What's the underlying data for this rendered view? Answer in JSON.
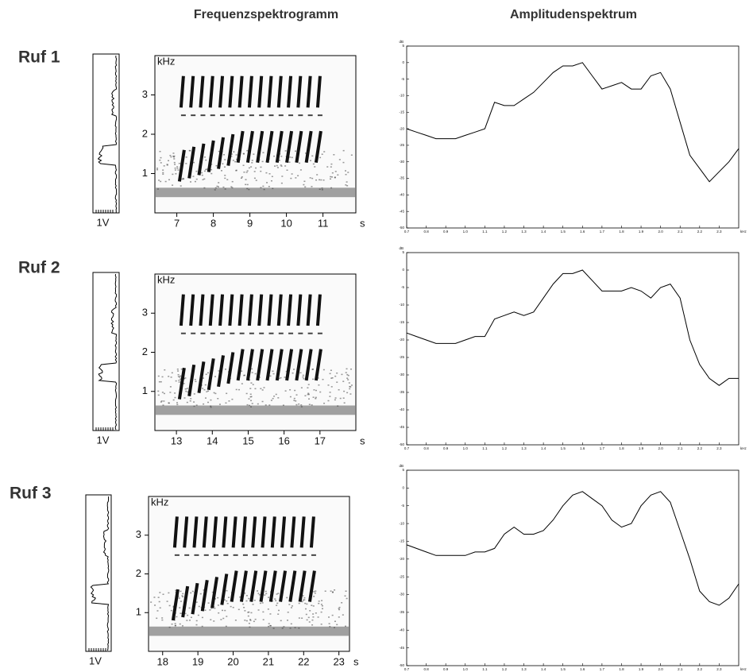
{
  "column_titles": [
    "Frequenzspektrogramm",
    "Amplitudenspektrum"
  ],
  "chart_data": [
    {
      "type": "spectrogram",
      "title": "Ruf 1",
      "ylabel": "kHz",
      "xlabel": "s",
      "side_label": "1V",
      "xlim": [
        6.4,
        11.9
      ],
      "xticks": [
        7,
        8,
        9,
        10,
        11
      ],
      "ylim": [
        0,
        4
      ],
      "yticks": [
        1,
        2,
        3
      ]
    },
    {
      "type": "line",
      "ylabel": "dB",
      "xlabel": "kHz",
      "color": "#000000",
      "xlim": [
        0.7,
        2.4
      ],
      "ylim": [
        -50,
        5
      ],
      "xticks": [
        0.7,
        0.8,
        0.9,
        {
          "value": 1,
          "label": "1.0"
        },
        1.1,
        1.2,
        1.3,
        1.4,
        1.5,
        1.6,
        1.7,
        1.8,
        1.9,
        {
          "value": 2,
          "label": "2.0"
        },
        2.1,
        2.2,
        2.3
      ],
      "yticks": [
        5,
        0,
        -5,
        -10,
        -15,
        -20,
        -25,
        -30,
        -35,
        -40,
        -45,
        -50
      ],
      "x": [
        0.7,
        0.75,
        0.8,
        0.85,
        0.9,
        0.95,
        1.0,
        1.05,
        1.1,
        1.15,
        1.2,
        1.25,
        1.3,
        1.35,
        1.4,
        1.45,
        1.5,
        1.55,
        1.6,
        1.65,
        1.7,
        1.75,
        1.8,
        1.85,
        1.9,
        1.95,
        2.0,
        2.05,
        2.1,
        2.15,
        2.2,
        2.25,
        2.3,
        2.35,
        2.4
      ],
      "values": [
        -20,
        -21,
        -22,
        -23,
        -23,
        -23,
        -22,
        -21,
        -20,
        -12,
        -13,
        -13,
        -11,
        -9,
        -6,
        -3,
        -1,
        -1,
        0,
        -4,
        -8,
        -7,
        -6,
        -8,
        -8,
        -4,
        -3,
        -8,
        -18,
        -28,
        -32,
        -36,
        -33,
        -30,
        -26
      ]
    },
    {
      "type": "spectrogram",
      "title": "Ruf 2",
      "ylabel": "kHz",
      "xlabel": "s",
      "side_label": "1V",
      "xlim": [
        12.4,
        18
      ],
      "xticks": [
        13,
        14,
        15,
        16,
        17
      ],
      "ylim": [
        0,
        4
      ],
      "yticks": [
        1,
        2,
        3
      ]
    },
    {
      "type": "line",
      "ylabel": "dB",
      "xlabel": "kHz",
      "color": "#000000",
      "xlim": [
        0.7,
        2.4
      ],
      "ylim": [
        -50,
        5
      ],
      "xticks": [
        0.7,
        0.8,
        0.9,
        {
          "value": 1,
          "label": "1.0"
        },
        1.1,
        1.2,
        1.3,
        1.4,
        1.5,
        1.6,
        1.7,
        1.8,
        1.9,
        {
          "value": 2,
          "label": "2.0"
        },
        2.1,
        2.2,
        2.3
      ],
      "yticks": [
        5,
        0,
        -5,
        -10,
        -15,
        -20,
        -25,
        -30,
        -35,
        -40,
        -45,
        -50
      ],
      "x": [
        0.7,
        0.75,
        0.8,
        0.85,
        0.9,
        0.95,
        1.0,
        1.05,
        1.1,
        1.15,
        1.2,
        1.25,
        1.3,
        1.35,
        1.4,
        1.45,
        1.5,
        1.55,
        1.6,
        1.65,
        1.7,
        1.75,
        1.8,
        1.85,
        1.9,
        1.95,
        2.0,
        2.05,
        2.1,
        2.15,
        2.2,
        2.25,
        2.3,
        2.35,
        2.4
      ],
      "values": [
        -18,
        -19,
        -20,
        -21,
        -21,
        -21,
        -20,
        -19,
        -19,
        -14,
        -13,
        -12,
        -13,
        -12,
        -8,
        -4,
        -1,
        -1,
        0,
        -3,
        -6,
        -6,
        -6,
        -5,
        -6,
        -8,
        -5,
        -4,
        -8,
        -20,
        -27,
        -31,
        -33,
        -31,
        -31
      ]
    },
    {
      "type": "spectrogram",
      "title": "Ruf 3",
      "ylabel": "kHz",
      "xlabel": "s",
      "side_label": "1V",
      "xlim": [
        17.6,
        23.3
      ],
      "xticks": [
        18,
        19,
        20,
        21,
        22,
        23
      ],
      "ylim": [
        0,
        4
      ],
      "yticks": [
        1,
        2,
        3
      ]
    },
    {
      "type": "line",
      "ylabel": "dB",
      "xlabel": "kHz",
      "color": "#000000",
      "xlim": [
        0.7,
        2.4
      ],
      "ylim": [
        -50,
        5
      ],
      "xticks": [
        0.7,
        0.8,
        0.9,
        {
          "value": 1,
          "label": "1.0"
        },
        1.1,
        1.2,
        1.3,
        1.4,
        1.5,
        1.6,
        1.7,
        1.8,
        1.9,
        {
          "value": 2,
          "label": "2.0"
        },
        2.1,
        2.2,
        2.3
      ],
      "yticks": [
        5,
        0,
        -5,
        -10,
        -15,
        -20,
        -25,
        -30,
        -35,
        -40,
        -45,
        -50
      ],
      "x": [
        0.7,
        0.75,
        0.8,
        0.85,
        0.9,
        0.95,
        1.0,
        1.05,
        1.1,
        1.15,
        1.2,
        1.25,
        1.3,
        1.35,
        1.4,
        1.45,
        1.5,
        1.55,
        1.6,
        1.65,
        1.7,
        1.75,
        1.8,
        1.85,
        1.9,
        1.95,
        2.0,
        2.05,
        2.1,
        2.15,
        2.2,
        2.25,
        2.3,
        2.35,
        2.4
      ],
      "values": [
        -16,
        -17,
        -18,
        -19,
        -19,
        -19,
        -19,
        -18,
        -18,
        -17,
        -13,
        -11,
        -13,
        -13,
        -12,
        -9,
        -5,
        -2,
        -1,
        -3,
        -5,
        -9,
        -11,
        -10,
        -5,
        -2,
        -1,
        -4,
        -12,
        -20,
        -29,
        -32,
        -33,
        -31,
        -27
      ]
    }
  ]
}
